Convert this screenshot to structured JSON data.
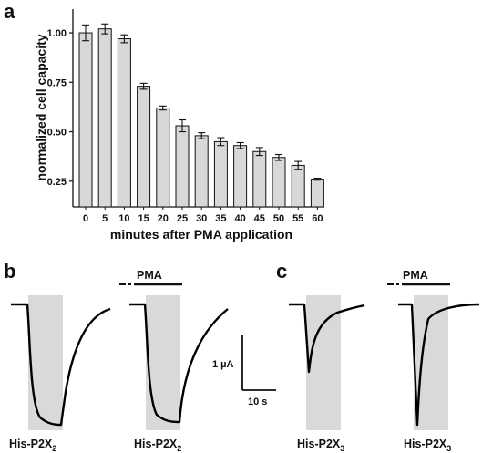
{
  "panels": {
    "a": "a",
    "b": "b",
    "c": "c"
  },
  "chart_data": {
    "type": "bar",
    "title": "",
    "xlabel": "minutes after PMA application",
    "ylabel": "normalized cell capacity",
    "categories": [
      "0",
      "5",
      "10",
      "15",
      "20",
      "25",
      "30",
      "35",
      "40",
      "45",
      "50",
      "55",
      "60"
    ],
    "values": [
      1.0,
      1.02,
      0.97,
      0.73,
      0.62,
      0.53,
      0.48,
      0.45,
      0.43,
      0.4,
      0.37,
      0.33,
      0.26
    ],
    "errors": [
      0.04,
      0.025,
      0.02,
      0.015,
      0.01,
      0.03,
      0.015,
      0.02,
      0.015,
      0.02,
      0.015,
      0.02,
      0.005
    ],
    "yticks": [
      "0.25",
      "0.50",
      "0.75",
      "1.00"
    ],
    "ylim": [
      0.12,
      1.12
    ],
    "grid": false,
    "bar_color": "#d8d8d8"
  },
  "traces": {
    "pma_label": "PMA",
    "labels": [
      "His-P2X",
      "His-P2X",
      "His-P2X",
      "His-P2X"
    ],
    "subscripts": [
      "2",
      "2",
      "3",
      "3"
    ],
    "scale_current": "1 µA",
    "scale_time": "10 s",
    "shade_color": "#d9d9d9"
  }
}
